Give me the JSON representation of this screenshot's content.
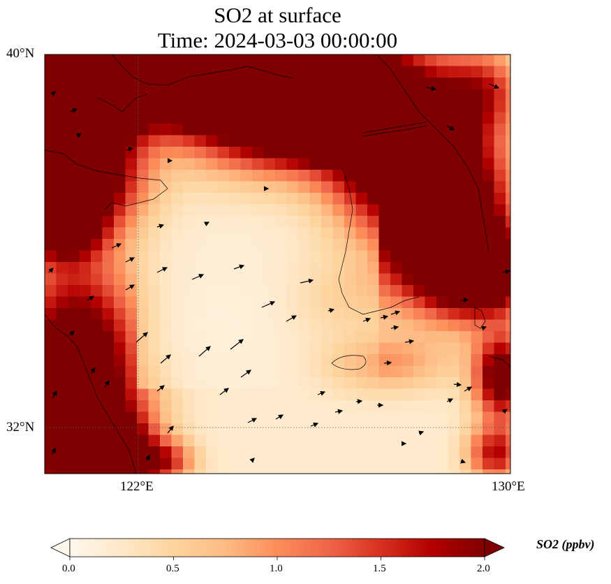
{
  "title": {
    "line1": "SO2 at surface",
    "line2": "Time: 2024-03-03 00:00:00"
  },
  "axes": {
    "lat_ticks": [
      "40°N",
      "32°N"
    ],
    "lon_ticks": [
      "122°E",
      "130°E"
    ]
  },
  "colorbar": {
    "label": "SO2 (ppbv)",
    "ticks": [
      "0.0",
      "0.5",
      "1.0",
      "1.5",
      "2.0"
    ],
    "min": 0.0,
    "max": 2.0,
    "extend": "both",
    "colormap": [
      "#fff7ec",
      "#fee8c8",
      "#fdd49e",
      "#fdbb84",
      "#fc8d59",
      "#ef6548",
      "#d7301f",
      "#b30000",
      "#7f0000"
    ]
  },
  "chart_data": {
    "type": "heatmap",
    "variable": "SO2",
    "units": "ppbv",
    "lon_range": [
      120,
      130
    ],
    "lat_range": [
      31,
      40
    ],
    "gridlines": {
      "lon": [
        122,
        130
      ],
      "lat": [
        32,
        40
      ],
      "style": "dotted"
    },
    "color_scale": {
      "min": 0,
      "max": 2
    },
    "high_regions": [
      "northwest (Shandong/Liaoning coast)",
      "north-central (Korea west coast)",
      "southwest (China coast)",
      "east (Korea south)",
      "southeast corner"
    ],
    "wind_vectors": "shown"
  }
}
